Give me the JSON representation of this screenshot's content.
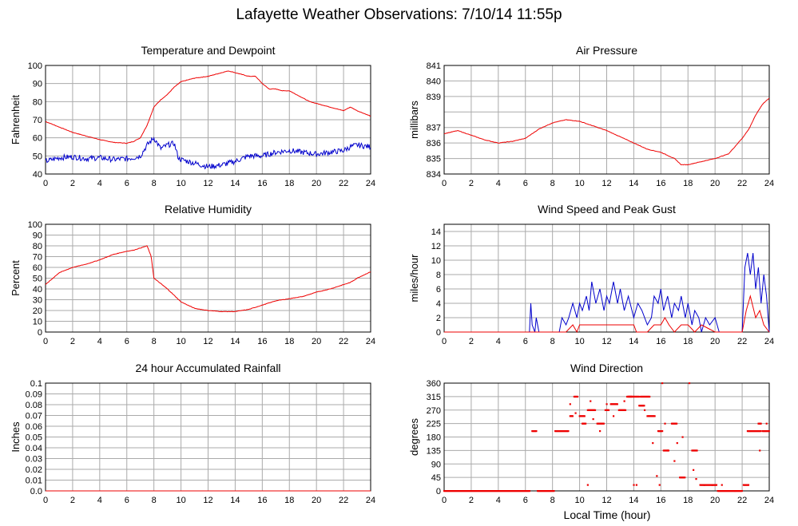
{
  "page_title": "Lafayette Weather Observations: 7/10/14 11:55p",
  "x_axis_label": "Local Time (hour)",
  "colors": {
    "red": "#ee0000",
    "blue": "#0000cc",
    "grid": "#aaaaaa",
    "frame": "#000000"
  },
  "chart_data": [
    {
      "id": "temp",
      "type": "line",
      "title": "Temperature and Dewpoint",
      "ylabel": "Fahrenheit",
      "xlim": [
        0,
        24
      ],
      "ylim": [
        40,
        100
      ],
      "yticks": [
        "40",
        "50",
        "60",
        "70",
        "80",
        "90",
        "100"
      ],
      "xticks": [
        "0",
        "2",
        "4",
        "6",
        "8",
        "10",
        "12",
        "14",
        "16",
        "18",
        "20",
        "22",
        "24"
      ],
      "grid": true,
      "series": [
        {
          "color": "red",
          "x": [
            0,
            1,
            2,
            3,
            4,
            5,
            6,
            6.5,
            7,
            7.5,
            8,
            8.5,
            9,
            9.5,
            10,
            11,
            12,
            13,
            13.5,
            14,
            15,
            15.5,
            16,
            16.5,
            17,
            17.5,
            18,
            18.5,
            19,
            19.5,
            20,
            21,
            22,
            22.5,
            23,
            24
          ],
          "y": [
            69,
            66,
            63,
            61,
            59,
            57.5,
            57,
            58,
            60,
            67,
            77,
            81,
            84,
            88,
            91,
            93,
            94,
            96,
            97,
            96,
            94,
            94,
            90,
            87,
            87,
            86,
            86,
            84,
            82,
            80,
            79,
            77,
            75,
            77,
            75,
            72
          ]
        },
        {
          "color": "blue",
          "x": [
            0,
            1,
            2,
            3,
            4,
            5,
            6,
            6.5,
            7,
            7.5,
            8,
            8.5,
            9,
            9.5,
            9.8,
            10,
            11,
            12,
            13,
            14,
            15,
            16,
            17,
            18,
            19,
            20,
            21,
            22,
            22.5,
            23,
            24
          ],
          "y": [
            47,
            49,
            49.5,
            48.5,
            49,
            48,
            48.5,
            49,
            50,
            56,
            60,
            54,
            56,
            57,
            49,
            48,
            46,
            44,
            45,
            47,
            50,
            50,
            52,
            53,
            52,
            51,
            52,
            53,
            55,
            56,
            55
          ],
          "jitter": 3
        }
      ]
    },
    {
      "id": "pressure",
      "type": "line",
      "title": "Air Pressure",
      "ylabel": "millibars",
      "xlim": [
        0,
        24
      ],
      "ylim": [
        834,
        841
      ],
      "yticks": [
        "834",
        "835",
        "836",
        "837",
        "838",
        "839",
        "840",
        "841"
      ],
      "yticks_display": [
        "834",
        "835",
        "836",
        "837",
        "",
        "839",
        "840",
        "841"
      ],
      "xticks": [
        "0",
        "2",
        "4",
        "6",
        "8",
        "10",
        "12",
        "14",
        "16",
        "18",
        "20",
        "22",
        "24"
      ],
      "grid": true,
      "series": [
        {
          "color": "red",
          "x": [
            0,
            1,
            2,
            3,
            4,
            5,
            6,
            7,
            8,
            9,
            10,
            11,
            12,
            13,
            14,
            15,
            16,
            17,
            17.5,
            18,
            19,
            20,
            21,
            22,
            22.5,
            23,
            23.5,
            24
          ],
          "y": [
            836.6,
            836.8,
            836.5,
            836.2,
            836.0,
            836.1,
            836.3,
            836.9,
            837.3,
            837.5,
            837.4,
            837.1,
            836.8,
            836.4,
            836.0,
            835.6,
            835.4,
            835.0,
            834.6,
            834.6,
            834.8,
            835.0,
            835.3,
            836.3,
            836.9,
            837.8,
            838.5,
            838.9
          ]
        }
      ]
    },
    {
      "id": "humidity",
      "type": "line",
      "title": "Relative Humidity",
      "ylabel": "Percent",
      "xlim": [
        0,
        24
      ],
      "ylim": [
        0,
        100
      ],
      "yticks": [
        "0",
        "10",
        "20",
        "30",
        "40",
        "50",
        "60",
        "70",
        "80",
        "90",
        "100"
      ],
      "xticks": [
        "0",
        "2",
        "4",
        "6",
        "8",
        "10",
        "12",
        "14",
        "16",
        "18",
        "20",
        "22",
        "24"
      ],
      "grid": true,
      "series": [
        {
          "color": "red",
          "x": [
            0,
            1,
            2,
            3,
            4,
            5,
            6,
            6.5,
            7,
            7.5,
            7.8,
            8,
            9,
            10,
            11,
            12,
            13,
            14,
            15,
            16,
            17,
            18,
            19,
            20,
            21,
            22,
            22.5,
            23,
            24
          ],
          "y": [
            44,
            55,
            60,
            63,
            67,
            72,
            75,
            76,
            78,
            80,
            70,
            50,
            40,
            28,
            22,
            20,
            19,
            19,
            21,
            25,
            29,
            31,
            33,
            37,
            40,
            44,
            46,
            50,
            56
          ]
        }
      ]
    },
    {
      "id": "wind",
      "type": "line",
      "title": "Wind Speed and Peak Gust",
      "ylabel": "miles/hour",
      "xlim": [
        0,
        24
      ],
      "ylim": [
        0,
        15
      ],
      "yticks": [
        "0",
        "2",
        "4",
        "6",
        "8",
        "10",
        "12",
        "14"
      ],
      "xticks": [
        "0",
        "2",
        "4",
        "6",
        "8",
        "10",
        "12",
        "14",
        "16",
        "18",
        "20",
        "22",
        "24"
      ],
      "grid": true,
      "series": [
        {
          "color": "blue",
          "x": [
            0,
            6.3,
            6.4,
            6.5,
            6.7,
            6.8,
            7,
            8.5,
            8.7,
            9,
            9.2,
            9.5,
            9.8,
            10,
            10.2,
            10.5,
            10.7,
            10.9,
            11.2,
            11.5,
            11.8,
            12,
            12.2,
            12.5,
            12.8,
            13,
            13.3,
            13.6,
            14,
            14.3,
            14.6,
            15,
            15.3,
            15.5,
            15.8,
            16,
            16.2,
            16.5,
            16.8,
            17,
            17.3,
            17.5,
            17.8,
            18,
            18.3,
            18.5,
            18.8,
            19,
            19.3,
            19.6,
            20,
            20.3,
            21,
            22,
            22.2,
            22.4,
            22.6,
            22.8,
            23,
            23.2,
            23.4,
            23.6,
            23.8,
            24
          ],
          "y": [
            0,
            0,
            4,
            1,
            0,
            2,
            0,
            0,
            2,
            1,
            2,
            4,
            2,
            4,
            3,
            5,
            3,
            7,
            4,
            6,
            3,
            5,
            4,
            7,
            4,
            6,
            3,
            5,
            2,
            4,
            3,
            1,
            2,
            5,
            4,
            6,
            3,
            5,
            2,
            4,
            3,
            5,
            2,
            4,
            1,
            3,
            2,
            0,
            2,
            1,
            2,
            0,
            0,
            0,
            9,
            11,
            8,
            11,
            6,
            9,
            4,
            8,
            5,
            0
          ]
        },
        {
          "color": "red",
          "x": [
            0,
            9,
            9.5,
            9.8,
            10,
            10.5,
            11,
            11.5,
            12,
            12.5,
            13,
            13.5,
            14,
            14.2,
            15,
            15.5,
            16,
            16.3,
            16.6,
            17,
            17.5,
            18,
            18.5,
            19,
            20,
            22,
            22.3,
            22.6,
            23,
            23.3,
            23.6,
            24
          ],
          "y": [
            0,
            0,
            1,
            0,
            1,
            1,
            1,
            1,
            1,
            1,
            1,
            1,
            1,
            0,
            0,
            1,
            1,
            2,
            1,
            0,
            1,
            1,
            0,
            1,
            0,
            0,
            3,
            5,
            2,
            3,
            1,
            0
          ]
        }
      ]
    },
    {
      "id": "rain",
      "type": "line",
      "title": "24 hour Accumulated Rainfall",
      "ylabel": "Inches",
      "xlim": [
        0,
        24
      ],
      "ylim": [
        0,
        0.1
      ],
      "yticks": [
        "0.0",
        "0.01",
        "0.02",
        "0.03",
        "0.04",
        "0.05",
        "0.06",
        "0.07",
        "0.08",
        "0.09",
        "0.1"
      ],
      "xticks": [
        "0",
        "2",
        "4",
        "6",
        "8",
        "10",
        "12",
        "14",
        "16",
        "18",
        "20",
        "22",
        "24"
      ],
      "grid": true,
      "series": [
        {
          "color": "red",
          "x": [
            0,
            24
          ],
          "y": [
            0,
            0
          ]
        }
      ]
    },
    {
      "id": "direction",
      "type": "scatter",
      "title": "Wind Direction",
      "ylabel": "degrees",
      "xlim": [
        0,
        24
      ],
      "ylim": [
        0,
        360
      ],
      "yticks": [
        "0",
        "45",
        "90",
        "135",
        "180",
        "225",
        "270",
        "315",
        "360"
      ],
      "xticks": [
        "0",
        "2",
        "4",
        "6",
        "8",
        "10",
        "12",
        "14",
        "16",
        "18",
        "20",
        "22",
        "24"
      ],
      "grid": true,
      "series": [
        {
          "color": "red",
          "segments": [
            [
              0,
              6.3,
              0
            ],
            [
              6.5,
              6.8,
              200
            ],
            [
              6.9,
              8.1,
              0
            ],
            [
              8.2,
              9.2,
              200
            ],
            [
              9.3,
              9.5,
              250
            ],
            [
              9.6,
              9.9,
              315
            ],
            [
              10.0,
              10.4,
              250
            ],
            [
              10.2,
              10.5,
              225
            ],
            [
              10.6,
              11.2,
              270
            ],
            [
              11.3,
              11.8,
              225
            ],
            [
              11.9,
              12.2,
              270
            ],
            [
              12.3,
              12.8,
              290
            ],
            [
              12.9,
              13.4,
              270
            ],
            [
              13.5,
              13.9,
              315
            ],
            [
              13.6,
              14.4,
              315
            ],
            [
              14.5,
              15.2,
              315
            ],
            [
              14.4,
              14.8,
              285
            ],
            [
              15.0,
              15.6,
              250
            ],
            [
              15.8,
              16.1,
              200
            ],
            [
              16.2,
              16.6,
              135
            ],
            [
              16.8,
              17.2,
              225
            ],
            [
              17.4,
              17.8,
              45
            ],
            [
              18.3,
              18.7,
              135
            ],
            [
              18.9,
              19.8,
              20
            ],
            [
              19.8,
              20.1,
              20
            ],
            [
              20.2,
              21.5,
              0
            ],
            [
              21.5,
              22.0,
              0
            ],
            [
              22.1,
              22.5,
              20
            ],
            [
              22.4,
              23.4,
              200
            ],
            [
              23.2,
              23.4,
              225
            ],
            [
              23.5,
              24,
              200
            ]
          ],
          "points": [
            [
              9.3,
              290
            ],
            [
              9.7,
              260
            ],
            [
              10.6,
              20
            ],
            [
              10.8,
              300
            ],
            [
              11.0,
              240
            ],
            [
              11.5,
              200
            ],
            [
              12.0,
              290
            ],
            [
              12.5,
              250
            ],
            [
              13.3,
              300
            ],
            [
              14.0,
              20
            ],
            [
              14.2,
              20
            ],
            [
              14.8,
              270
            ],
            [
              15.4,
              160
            ],
            [
              15.7,
              50
            ],
            [
              15.9,
              20
            ],
            [
              16.1,
              360
            ],
            [
              16.3,
              225
            ],
            [
              16.5,
              135
            ],
            [
              17.0,
              100
            ],
            [
              17.2,
              160
            ],
            [
              17.6,
              180
            ],
            [
              18.1,
              360
            ],
            [
              18.4,
              70
            ],
            [
              18.6,
              40
            ],
            [
              19.2,
              20
            ],
            [
              20.5,
              20
            ],
            [
              23.3,
              135
            ],
            [
              23.8,
              225
            ]
          ]
        }
      ]
    }
  ]
}
